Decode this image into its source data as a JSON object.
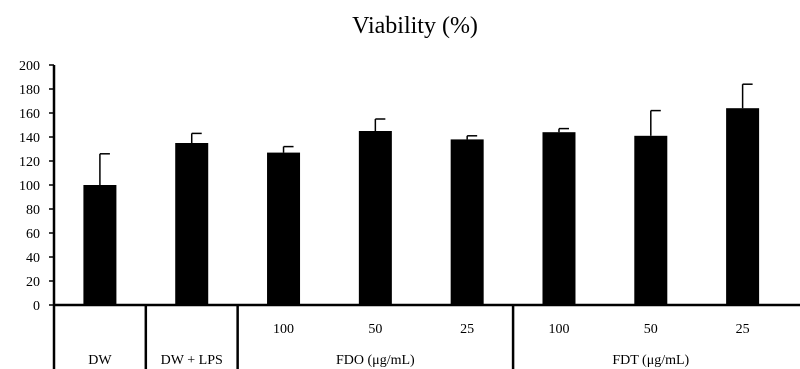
{
  "chart_data": {
    "type": "bar",
    "title": "Viability (%)",
    "xlabel": "",
    "ylabel": "",
    "ylim": [
      0,
      200
    ],
    "yticks": [
      0,
      20,
      40,
      60,
      80,
      100,
      120,
      140,
      160,
      180,
      200
    ],
    "grid": false,
    "bar_color": "#000000",
    "categories": [
      "DW",
      "DW + LPS",
      "100",
      "50",
      "25",
      "100",
      "50",
      "25"
    ],
    "groups": [
      {
        "label": "DW",
        "span": [
          0,
          0
        ]
      },
      {
        "label": "DW + LPS",
        "span": [
          1,
          1
        ]
      },
      {
        "label": "FDO (μg/mL)",
        "span": [
          2,
          4
        ]
      },
      {
        "label": "FDT (μg/mL)",
        "span": [
          5,
          7
        ]
      }
    ],
    "series": [
      {
        "values": [
          100,
          135,
          127,
          145,
          138,
          144,
          141,
          164
        ],
        "error": [
          26,
          8,
          5,
          10,
          3,
          3,
          21,
          20
        ]
      }
    ]
  }
}
